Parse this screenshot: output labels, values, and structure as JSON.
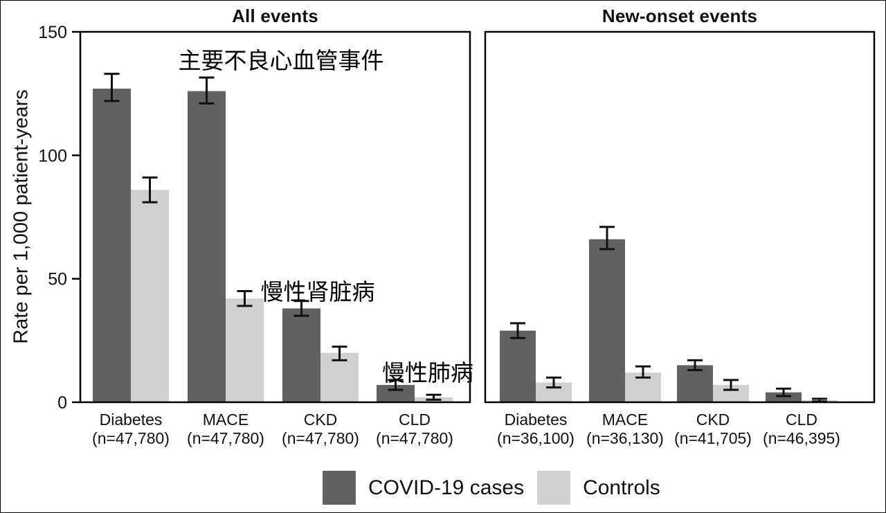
{
  "figure": {
    "y_axis_label": "Rate per 1,000 patient-years",
    "legend": [
      {
        "label": "COVID-19 cases",
        "color": "#616161"
      },
      {
        "label": "Controls",
        "color": "#d0d0d0"
      }
    ],
    "annotations": [
      {
        "text": "主要不良心血管事件"
      },
      {
        "text": "慢性肾脏病"
      },
      {
        "text": "慢性肺病"
      }
    ],
    "colors": {
      "axis": "#000000",
      "error_bar": "#111111",
      "background": "#ffffff"
    }
  },
  "chart_data": [
    {
      "type": "bar",
      "title": "All events",
      "ylabel": "Rate per 1,000 patient-years",
      "ylim": [
        0,
        150
      ],
      "yticks": [
        0,
        50,
        100,
        150
      ],
      "grid": false,
      "legend_position": "bottom",
      "categories": [
        "Diabetes",
        "MACE",
        "CKD",
        "CLD"
      ],
      "n_labels": [
        "(n=47,780)",
        "(n=47,780)",
        "(n=47,780)",
        "(n=47,780)"
      ],
      "series": [
        {
          "name": "COVID-19 cases",
          "values": [
            127,
            126,
            38,
            7
          ],
          "ci_low": [
            122,
            121,
            35,
            5
          ],
          "ci_high": [
            133,
            131.5,
            41,
            9
          ]
        },
        {
          "name": "Controls",
          "values": [
            86,
            42,
            20,
            2
          ],
          "ci_low": [
            81,
            39,
            17,
            1
          ],
          "ci_high": [
            91,
            45,
            22.5,
            3
          ]
        }
      ]
    },
    {
      "type": "bar",
      "title": "New-onset events",
      "ylabel": "Rate per 1,000 patient-years",
      "ylim": [
        0,
        150
      ],
      "yticks": [
        0,
        50,
        100,
        150
      ],
      "grid": false,
      "legend_position": "bottom",
      "categories": [
        "Diabetes",
        "MACE",
        "CKD",
        "CLD"
      ],
      "n_labels": [
        "(n=36,100)",
        "(n=36,130)",
        "(n=41,705)",
        "(n=46,395)"
      ],
      "series": [
        {
          "name": "COVID-19 cases",
          "values": [
            29,
            66,
            15,
            4
          ],
          "ci_low": [
            26,
            62,
            13,
            2.5
          ],
          "ci_high": [
            32,
            71,
            17,
            5.5
          ]
        },
        {
          "name": "Controls",
          "values": [
            8,
            12,
            7,
            0.8
          ],
          "ci_low": [
            6,
            10,
            5,
            0.3
          ],
          "ci_high": [
            10,
            14.5,
            9,
            1.4
          ]
        }
      ]
    }
  ]
}
